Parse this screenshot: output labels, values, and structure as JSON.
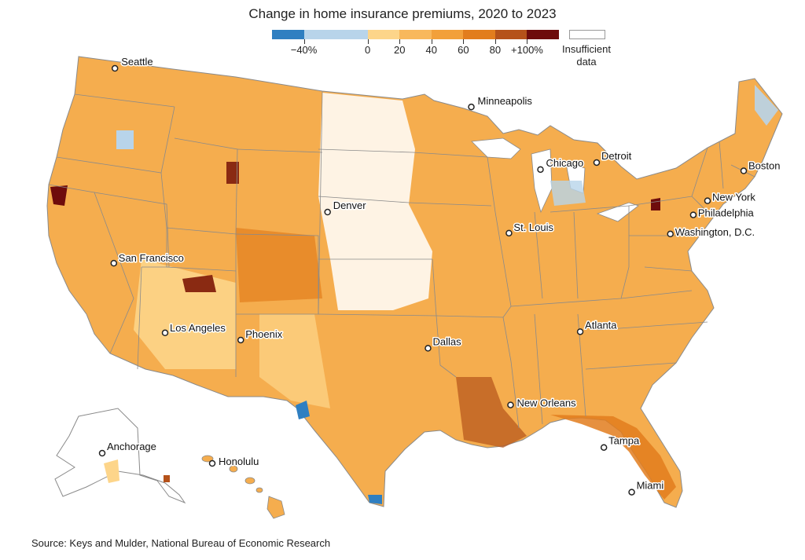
{
  "title": "Change in home insurance premiums, 2020 to 2023",
  "legend": {
    "swatches": [
      {
        "from": -60,
        "to": -40,
        "color": "#2f7fc1"
      },
      {
        "from": -40,
        "to": 0,
        "color": "#b8d4ea"
      },
      {
        "from": 0,
        "to": 20,
        "color": "#fdd58a"
      },
      {
        "from": 20,
        "to": 40,
        "color": "#f8b85c"
      },
      {
        "from": 40,
        "to": 60,
        "color": "#f2a03a"
      },
      {
        "from": 60,
        "to": 80,
        "color": "#e27d1d"
      },
      {
        "from": 80,
        "to": 100,
        "color": "#b5521a"
      },
      {
        "from": 100,
        "to": 120,
        "color": "#6e0c0c"
      }
    ],
    "tick_labels": [
      "−40%",
      "0",
      "20",
      "40",
      "60",
      "80",
      "+100%"
    ],
    "insufficient_label": "Insufficient data",
    "insufficient_color": "#ffffff"
  },
  "state_fill_color": "#f5ad4e",
  "border_color": "#8a8a8a",
  "cities": [
    {
      "name": "Seattle",
      "lat": 47.61,
      "lon": -122.33
    },
    {
      "name": "San Francisco",
      "lat": 37.77,
      "lon": -122.42
    },
    {
      "name": "Los Angeles",
      "lat": 34.05,
      "lon": -118.24
    },
    {
      "name": "Phoenix",
      "lat": 33.45,
      "lon": -112.07
    },
    {
      "name": "Denver",
      "lat": 39.74,
      "lon": -104.99
    },
    {
      "name": "Minneapolis",
      "lat": 44.98,
      "lon": -93.27
    },
    {
      "name": "Chicago",
      "lat": 41.88,
      "lon": -87.63
    },
    {
      "name": "St. Louis",
      "lat": 38.63,
      "lon": -90.2
    },
    {
      "name": "Dallas",
      "lat": 32.78,
      "lon": -96.8
    },
    {
      "name": "Detroit",
      "lat": 42.33,
      "lon": -83.05
    },
    {
      "name": "New Orleans",
      "lat": 29.95,
      "lon": -90.07
    },
    {
      "name": "Atlanta",
      "lat": 33.75,
      "lon": -84.39
    },
    {
      "name": "Tampa",
      "lat": 27.95,
      "lon": -82.46
    },
    {
      "name": "Miami",
      "lat": 25.76,
      "lon": -80.19
    },
    {
      "name": "Washington, D.C.",
      "lat": 38.91,
      "lon": -77.04
    },
    {
      "name": "Philadelphia",
      "lat": 39.95,
      "lon": -75.17
    },
    {
      "name": "New York",
      "lat": 40.71,
      "lon": -74.01
    },
    {
      "name": "Boston",
      "lat": 42.36,
      "lon": -71.06
    },
    {
      "name": "Anchorage",
      "lat": 61.22,
      "lon": -149.9,
      "inset": "alaska"
    },
    {
      "name": "Honolulu",
      "lat": 21.31,
      "lon": -157.86,
      "inset": "hawaii"
    }
  ],
  "source": "Source: Keys and Mulder, National Bureau of Economic Research"
}
